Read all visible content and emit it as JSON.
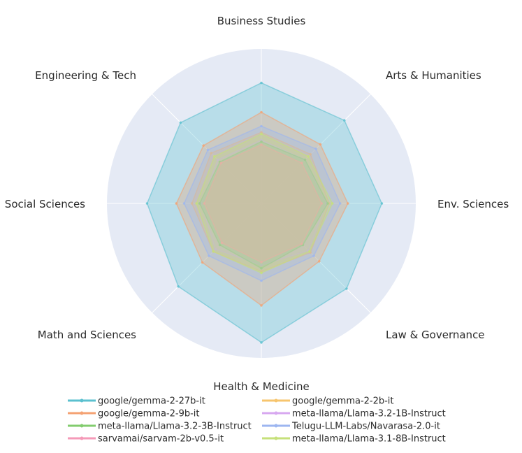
{
  "chart_data": {
    "type": "radar",
    "title": "",
    "axes": [
      "Business Studies",
      "Arts & Humanities",
      "Env. Sciences",
      "Law & Governance",
      "Health & Medicine",
      "Math and Sciences",
      "Social Sciences",
      "Engineering & Tech"
    ],
    "range": [
      0,
      1
    ],
    "grid": true,
    "legend_position": "bottom",
    "background_color": "#e5eaf5",
    "series": [
      {
        "name": "google/gemma-2-27b-it",
        "color": "#5bc0cf",
        "values": [
          0.78,
          0.76,
          0.78,
          0.78,
          0.9,
          0.76,
          0.74,
          0.74
        ]
      },
      {
        "name": "google/gemma-2-2b-it",
        "color": "#f7c56e",
        "values": [
          0.46,
          0.45,
          0.44,
          0.45,
          0.44,
          0.44,
          0.45,
          0.46
        ]
      },
      {
        "name": "google/gemma-2-9b-it",
        "color": "#f4a273",
        "values": [
          0.59,
          0.54,
          0.56,
          0.53,
          0.66,
          0.54,
          0.55,
          0.53
        ]
      },
      {
        "name": "meta-llama/Llama-3.2-1B-Instruct",
        "color": "#d7a8f0",
        "values": [
          0.41,
          0.4,
          0.42,
          0.43,
          0.4,
          0.42,
          0.39,
          0.4
        ]
      },
      {
        "name": "meta-llama/Llama-3.2-3B-Instruct",
        "color": "#82cc6e",
        "values": [
          0.4,
          0.4,
          0.43,
          0.38,
          0.42,
          0.38,
          0.4,
          0.38
        ]
      },
      {
        "name": "Telugu-LLM-Labs/Navarasa-2.0-it",
        "color": "#9db6f0",
        "values": [
          0.5,
          0.5,
          0.51,
          0.48,
          0.5,
          0.48,
          0.5,
          0.49
        ]
      },
      {
        "name": "sarvamai/sarvam-2b-v0.5-it",
        "color": "#f59ab8",
        "values": [
          0.38,
          0.37,
          0.39,
          0.37,
          0.38,
          0.36,
          0.37,
          0.37
        ]
      },
      {
        "name": "meta-llama/Llama-3.1-8B-Instruct",
        "color": "#c6e07a",
        "values": [
          0.45,
          0.43,
          0.46,
          0.44,
          0.45,
          0.44,
          0.42,
          0.43
        ]
      }
    ]
  }
}
